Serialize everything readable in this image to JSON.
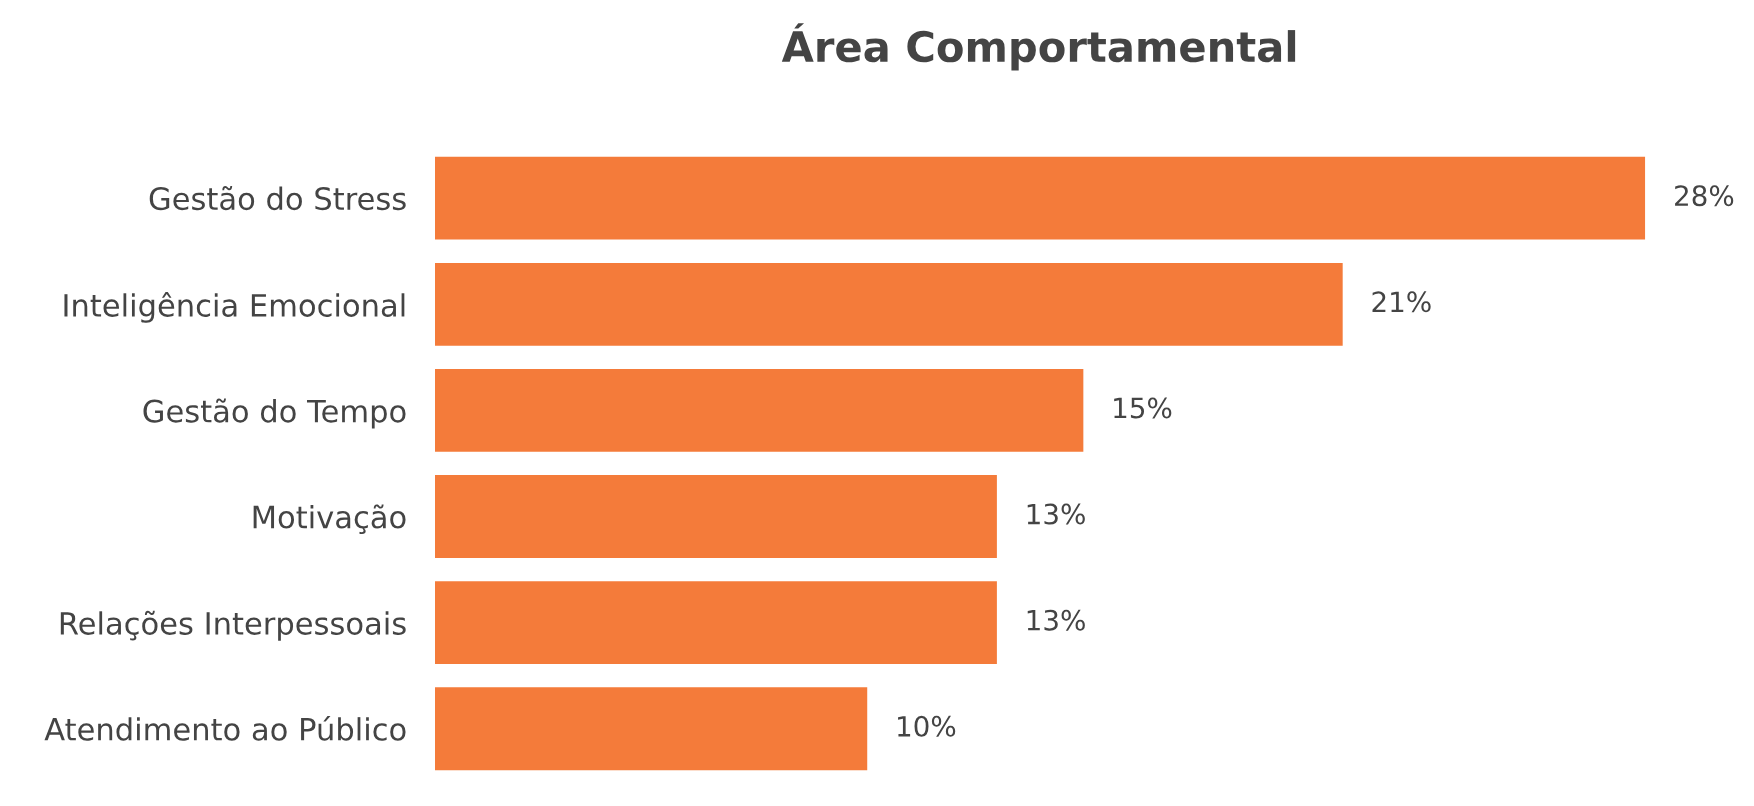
{
  "chart_data": {
    "type": "bar",
    "orientation": "horizontal",
    "title": "Área Comportamental",
    "categories": [
      "Gestão do Stress",
      "Inteligência Emocional",
      "Gestão do Tempo",
      "Motivação",
      "Relações Interpessoais",
      "Atendimento ao Público"
    ],
    "values": [
      28,
      21,
      15,
      13,
      13,
      10
    ],
    "value_labels": [
      "28%",
      "21%",
      "15%",
      "13%",
      "13%",
      "10%"
    ],
    "color": "#f47b3a",
    "grid": false,
    "legend": false,
    "tick_labels": "y"
  }
}
